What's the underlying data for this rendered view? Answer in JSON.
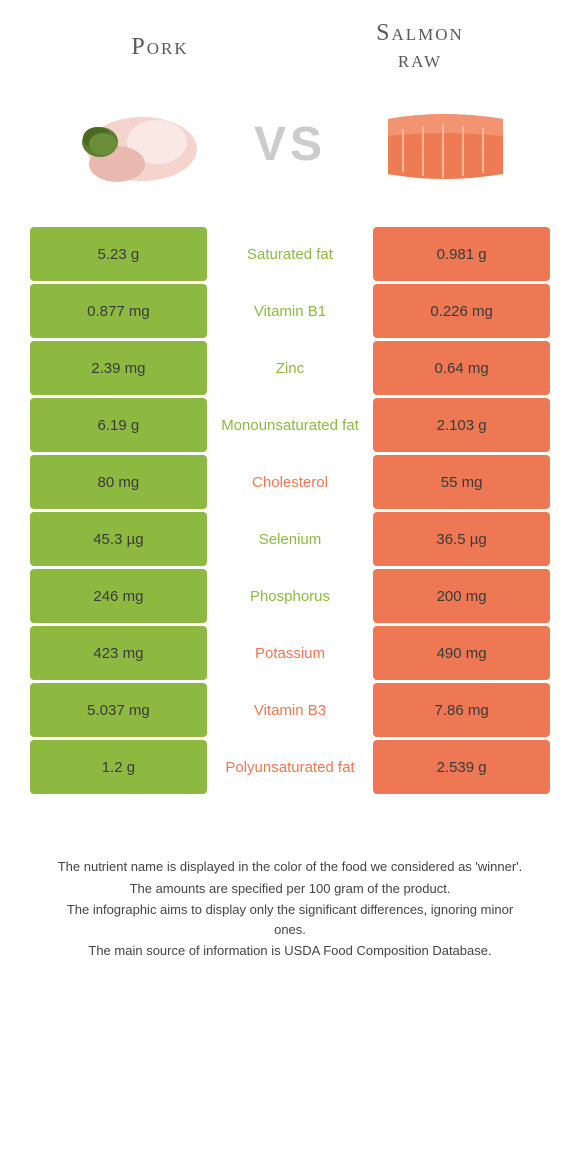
{
  "colors": {
    "left": "#8eb940",
    "right": "#ed7853",
    "mid_bg": "#ffffff",
    "row_text": "#3a3a3a",
    "title_text": "#5a5a5a",
    "vs_text": "#cccccc"
  },
  "food_left": {
    "title": "Pork"
  },
  "food_right": {
    "title": "Salmon\nraw"
  },
  "vs_label": "VS",
  "rows": [
    {
      "left": "5.23 g",
      "mid": "Saturated fat",
      "right": "0.981 g",
      "winner": "left"
    },
    {
      "left": "0.877 mg",
      "mid": "Vitamin B1",
      "right": "0.226 mg",
      "winner": "left"
    },
    {
      "left": "2.39 mg",
      "mid": "Zinc",
      "right": "0.64 mg",
      "winner": "left"
    },
    {
      "left": "6.19 g",
      "mid": "Monounsaturated fat",
      "right": "2.103 g",
      "winner": "left"
    },
    {
      "left": "80 mg",
      "mid": "Cholesterol",
      "right": "55 mg",
      "winner": "right"
    },
    {
      "left": "45.3 µg",
      "mid": "Selenium",
      "right": "36.5 µg",
      "winner": "left"
    },
    {
      "left": "246 mg",
      "mid": "Phosphorus",
      "right": "200 mg",
      "winner": "left"
    },
    {
      "left": "423 mg",
      "mid": "Potassium",
      "right": "490 mg",
      "winner": "right"
    },
    {
      "left": "5.037 mg",
      "mid": "Vitamin B3",
      "right": "7.86 mg",
      "winner": "right"
    },
    {
      "left": "1.2 g",
      "mid": "Polyunsaturated fat",
      "right": "2.539 g",
      "winner": "right"
    }
  ],
  "footer": {
    "line1": "The nutrient name is displayed in the color of the food we considered as 'winner'.",
    "line2": "The amounts are specified per 100 gram of the product.",
    "line3": "The infographic aims to display only the significant differences, ignoring minor ones.",
    "line4": "The main source of information is USDA Food Composition Database."
  }
}
